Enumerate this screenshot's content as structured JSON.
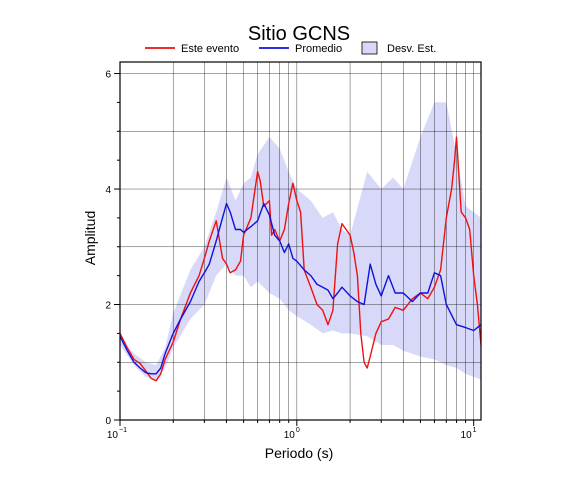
{
  "chart_data": {
    "type": "line",
    "title": "Sitio GCNS",
    "xlabel": "Periodo (s)",
    "ylabel": "Amplitud",
    "x_scale": "log",
    "xlim": [
      0.1,
      11
    ],
    "ylim": [
      0,
      6.2
    ],
    "grid": true,
    "legend_position": "top",
    "x_tick_labels": [
      {
        "value": 0.1,
        "base": "10",
        "exp": "−1"
      },
      {
        "value": 1,
        "base": "10",
        "exp": "0"
      },
      {
        "value": 10,
        "base": "10",
        "exp": "1"
      }
    ],
    "y_ticks": [
      0,
      2,
      4,
      6
    ],
    "y_tick_labels": [
      "0",
      "2",
      "4",
      "6"
    ],
    "legend": [
      {
        "label": "Este evento",
        "kind": "line",
        "color": "#ee1111"
      },
      {
        "label": "Promedio",
        "kind": "line",
        "color": "#1111dd"
      },
      {
        "label": "Desv. Est.",
        "kind": "box",
        "color": "#d8d8f8"
      }
    ],
    "band": {
      "name": "Desv. Est.",
      "color": "#d8d8f8",
      "x": [
        0.1,
        0.12,
        0.14,
        0.16,
        0.18,
        0.2,
        0.25,
        0.3,
        0.35,
        0.4,
        0.45,
        0.5,
        0.55,
        0.6,
        0.7,
        0.8,
        0.9,
        1.0,
        1.2,
        1.4,
        1.6,
        1.8,
        2.0,
        2.5,
        3.0,
        3.5,
        4.0,
        5.0,
        6.0,
        7.0,
        8.0,
        9.0,
        10.0,
        11.0
      ],
      "upper": [
        1.4,
        1.15,
        1.0,
        0.95,
        1.25,
        1.85,
        2.6,
        3.0,
        3.6,
        4.2,
        3.8,
        4.1,
        4.2,
        4.6,
        4.9,
        4.7,
        4.3,
        4.0,
        3.8,
        3.5,
        3.6,
        3.3,
        3.2,
        4.3,
        4.0,
        4.2,
        4.0,
        4.9,
        5.5,
        5.5,
        4.6,
        3.7,
        3.6,
        3.5
      ],
      "lower": [
        1.3,
        0.95,
        0.75,
        0.7,
        0.9,
        1.25,
        1.75,
        2.0,
        2.5,
        2.7,
        2.5,
        2.5,
        2.3,
        2.4,
        2.2,
        2.1,
        1.9,
        1.8,
        1.65,
        1.5,
        1.55,
        1.5,
        1.5,
        1.45,
        1.3,
        1.3,
        1.2,
        1.1,
        1.05,
        0.95,
        0.9,
        0.8,
        0.75,
        0.7
      ]
    },
    "series": [
      {
        "name": "Este evento",
        "color": "#ee1111",
        "x": [
          0.1,
          0.11,
          0.12,
          0.13,
          0.14,
          0.15,
          0.16,
          0.17,
          0.18,
          0.2,
          0.22,
          0.25,
          0.28,
          0.3,
          0.32,
          0.35,
          0.38,
          0.4,
          0.42,
          0.45,
          0.48,
          0.5,
          0.55,
          0.6,
          0.62,
          0.65,
          0.7,
          0.72,
          0.75,
          0.8,
          0.85,
          0.9,
          0.95,
          1.0,
          1.05,
          1.1,
          1.2,
          1.3,
          1.4,
          1.5,
          1.6,
          1.7,
          1.8,
          1.9,
          2.0,
          2.1,
          2.2,
          2.3,
          2.4,
          2.5,
          2.6,
          2.8,
          3.0,
          3.3,
          3.6,
          4.0,
          4.5,
          5.0,
          5.5,
          6.0,
          6.5,
          7.0,
          7.5,
          7.8,
          8.0,
          8.5,
          9.0,
          9.5,
          10.0,
          10.5,
          11.0
        ],
        "y": [
          1.5,
          1.25,
          1.05,
          0.98,
          0.85,
          0.72,
          0.68,
          0.8,
          1.05,
          1.35,
          1.75,
          2.2,
          2.5,
          2.8,
          3.1,
          3.45,
          2.8,
          2.7,
          2.55,
          2.6,
          2.75,
          3.2,
          3.5,
          4.3,
          4.15,
          3.7,
          3.8,
          3.2,
          3.3,
          3.1,
          3.3,
          3.75,
          4.1,
          3.8,
          3.6,
          2.6,
          2.3,
          2.0,
          1.9,
          1.65,
          1.9,
          3.05,
          3.4,
          3.3,
          3.2,
          2.9,
          2.5,
          1.5,
          1.0,
          0.9,
          1.1,
          1.5,
          1.7,
          1.75,
          1.95,
          1.9,
          2.1,
          2.2,
          2.1,
          2.3,
          2.6,
          3.5,
          4.0,
          4.5,
          4.9,
          3.6,
          3.5,
          3.3,
          2.5,
          2.0,
          1.3
        ]
      },
      {
        "name": "Promedio",
        "color": "#1111dd",
        "x": [
          0.1,
          0.11,
          0.12,
          0.13,
          0.14,
          0.15,
          0.16,
          0.17,
          0.18,
          0.2,
          0.22,
          0.25,
          0.28,
          0.3,
          0.32,
          0.35,
          0.38,
          0.4,
          0.42,
          0.45,
          0.48,
          0.5,
          0.55,
          0.6,
          0.65,
          0.7,
          0.75,
          0.8,
          0.85,
          0.9,
          0.95,
          1.0,
          1.1,
          1.2,
          1.3,
          1.4,
          1.5,
          1.6,
          1.7,
          1.8,
          2.0,
          2.2,
          2.4,
          2.6,
          2.8,
          3.0,
          3.3,
          3.6,
          4.0,
          4.5,
          5.0,
          5.5,
          6.0,
          6.5,
          7.0,
          8.0,
          9.0,
          10.0,
          11.0
        ],
        "y": [
          1.45,
          1.2,
          1.0,
          0.9,
          0.82,
          0.8,
          0.8,
          0.9,
          1.15,
          1.5,
          1.75,
          2.05,
          2.4,
          2.55,
          2.7,
          3.1,
          3.5,
          3.75,
          3.6,
          3.3,
          3.3,
          3.25,
          3.35,
          3.45,
          3.75,
          3.55,
          3.2,
          3.1,
          2.9,
          3.05,
          2.8,
          2.75,
          2.6,
          2.5,
          2.35,
          2.3,
          2.25,
          2.1,
          2.2,
          2.3,
          2.15,
          2.05,
          2.0,
          2.7,
          2.35,
          2.15,
          2.5,
          2.2,
          2.2,
          2.05,
          2.2,
          2.2,
          2.55,
          2.5,
          2.0,
          1.65,
          1.6,
          1.55,
          1.65
        ]
      }
    ]
  }
}
